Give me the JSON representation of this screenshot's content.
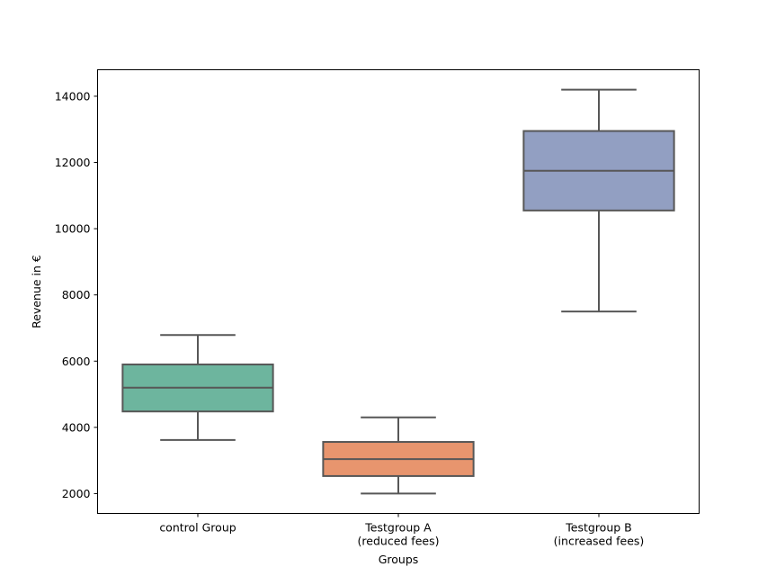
{
  "chart_data": {
    "type": "box",
    "title": "",
    "xlabel": "Groups",
    "ylabel": "Revenue in €",
    "ylim": [
      1400,
      14800
    ],
    "yticks": [
      2000,
      4000,
      6000,
      8000,
      10000,
      12000,
      14000
    ],
    "grid": false,
    "categories": [
      [
        "control Group"
      ],
      [
        "Testgroup A",
        "(reduced fees)"
      ],
      [
        "Testgroup B",
        "(increased fees)"
      ]
    ],
    "boxes": [
      {
        "whisker_low": 3620,
        "q1": 4480,
        "median": 5200,
        "q3": 5900,
        "whisker_high": 6790,
        "color": "#6db59e"
      },
      {
        "whisker_low": 2000,
        "q1": 2530,
        "median": 3040,
        "q3": 3560,
        "whisker_high": 4300,
        "color": "#e8956e"
      },
      {
        "whisker_low": 7500,
        "q1": 10550,
        "median": 11750,
        "q3": 12950,
        "whisker_high": 14200,
        "color": "#929fc2"
      }
    ],
    "line_color": "#575757"
  }
}
